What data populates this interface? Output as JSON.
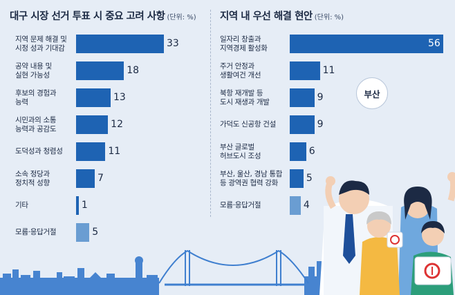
{
  "chart_data": [
    {
      "type": "bar",
      "orientation": "horizontal",
      "title": "대구 시장 선거 투표 시 중요 고려 사항",
      "unit": "(단위: %)",
      "categories": [
        [
          "지역 문제 해결 및",
          "시정 성과 기대감"
        ],
        [
          "공약 내용 및",
          "실현 가능성"
        ],
        [
          "후보의 경험과",
          "능력"
        ],
        [
          "시민과의 소통",
          "능력과 공감도"
        ],
        [
          "도덕성과 청렴성"
        ],
        [
          "소속 정당과",
          "정치적 성향"
        ],
        [
          "기타"
        ],
        [
          "모름·응답거절"
        ]
      ],
      "values": [
        33,
        18,
        13,
        12,
        11,
        7,
        1,
        5
      ],
      "value_labels": [
        "33",
        "18",
        "13",
        "12",
        "11",
        "7",
        "1",
        "5"
      ],
      "xlim": [
        0,
        33
      ]
    },
    {
      "type": "bar",
      "orientation": "horizontal",
      "title": "지역 내 우선 해결 현안",
      "unit": "(단위: %)",
      "categories": [
        [
          "일자리 창출과",
          "지역경제 활성화"
        ],
        [
          "주거 안정과",
          "생활여건 개선"
        ],
        [
          "북항 재개발 등",
          "도시 재생과 개발"
        ],
        [
          "가덕도 신공항 건설"
        ],
        [
          "부산 글로벌",
          "허브도시 조성"
        ],
        [
          "부산, 울산, 경남 통합",
          "등 광역권 협력 강화"
        ],
        [
          "모름·응답거절"
        ]
      ],
      "values": [
        56,
        11,
        9,
        9,
        6,
        5,
        4
      ],
      "value_labels": [
        "56",
        "11",
        "9",
        "9",
        "6",
        "5",
        "4"
      ],
      "xlim": [
        0,
        56
      ]
    }
  ],
  "badge": {
    "label": "부산"
  },
  "colors": {
    "bar": "#1e63b3",
    "bar_last": "#6a9dd2",
    "background": "#e6edf6",
    "text": "#1c2a44",
    "skyline": "#3f7fcf"
  },
  "icons": [
    "city-skyline-icon",
    "bridge-icon",
    "voters-illustration-icon"
  ]
}
